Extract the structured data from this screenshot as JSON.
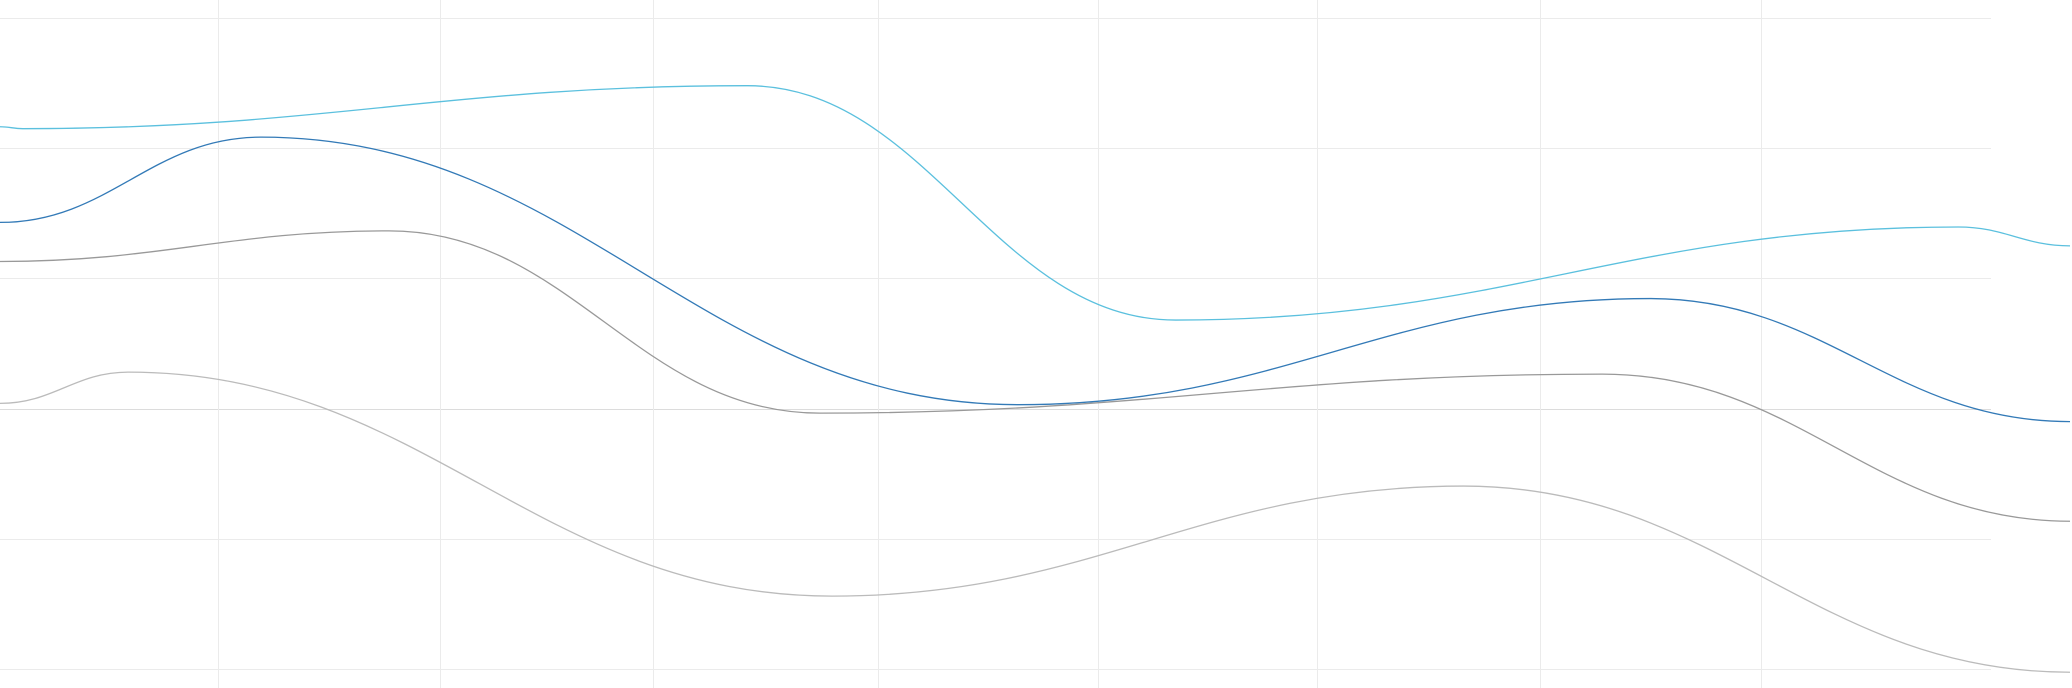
{
  "chart_data": {
    "type": "line",
    "title": "",
    "xlabel": "",
    "ylabel": "",
    "xlim": [
      0,
      100
    ],
    "ylim": [
      0,
      100
    ],
    "grid": true,
    "legend": "none",
    "y_gridlines": [
      0,
      20,
      40,
      60,
      80,
      100
    ],
    "x_gridlines": [
      10.55,
      21.25,
      31.55,
      42.4,
      53.05,
      63.6,
      74.4,
      85.05
    ],
    "strong_y_gridline": 40,
    "series": [
      {
        "color": "#5bc0de",
        "points": [
          [
            0,
            83.3
          ],
          [
            1.1,
            83.0
          ],
          [
            36.1,
            89.6
          ],
          [
            56.8,
            53.6
          ],
          [
            94.6,
            67.9
          ],
          [
            100,
            65.0
          ]
        ]
      },
      {
        "color": "#337ab7",
        "points": [
          [
            0,
            68.6
          ],
          [
            12.6,
            81.7
          ],
          [
            49.2,
            40.6
          ],
          [
            79.7,
            56.9
          ],
          [
            100,
            38.0
          ]
        ]
      },
      {
        "color": "#999999",
        "points": [
          [
            0,
            62.6
          ],
          [
            18.8,
            67.3
          ],
          [
            39.6,
            39.3
          ],
          [
            77.4,
            45.3
          ],
          [
            100,
            22.7
          ]
        ]
      },
      {
        "color": "#bbbbbb",
        "points": [
          [
            0,
            40.8
          ],
          [
            6.2,
            45.6
          ],
          [
            40.2,
            11.2
          ],
          [
            70.7,
            28.1
          ],
          [
            100,
            -0.5
          ]
        ]
      }
    ]
  }
}
